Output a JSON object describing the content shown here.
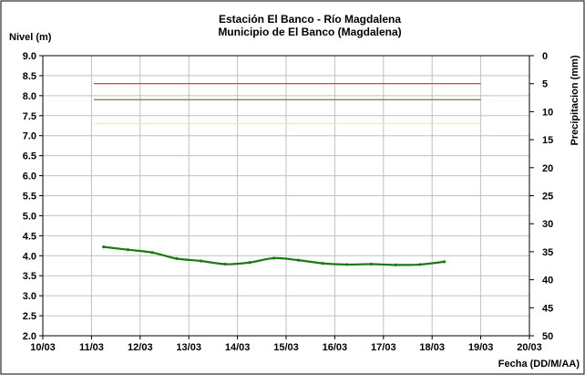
{
  "chart_data": {
    "type": "line",
    "title": "Estación El Banco - Río Magdalena",
    "subtitle": "Municipio de El Banco (Magdalena)",
    "ylabel": "Nivel (m)",
    "y2label": "Precipitacion (mm)",
    "xlabel": "Fecha (DD/M/AA)",
    "ylim": [
      2.0,
      9.0
    ],
    "y_ticks": [
      "2.0",
      "2.5",
      "3.0",
      "3.5",
      "4.0",
      "4.5",
      "5.0",
      "5.5",
      "6.0",
      "6.5",
      "7.0",
      "7.5",
      "8.0",
      "8.5",
      "9.0"
    ],
    "y2lim": [
      0,
      50
    ],
    "y2_reversed": true,
    "y2_ticks": [
      "0",
      "5",
      "10",
      "15",
      "20",
      "25",
      "30",
      "35",
      "40",
      "45",
      "50"
    ],
    "x_ticks": [
      "10/03",
      "11/03",
      "12/03",
      "13/03",
      "14/03",
      "15/03",
      "16/03",
      "17/03",
      "18/03",
      "19/03",
      "20/03"
    ],
    "grid": true,
    "threshold_lines": [
      {
        "y": 8.3,
        "color": "#e8231f"
      },
      {
        "y": 7.9,
        "color": "#8b6b45"
      },
      {
        "y": 7.3,
        "color": "#ffff33"
      }
    ],
    "series": [
      {
        "color": "#1a7a10",
        "x": [
          1.25,
          1.75,
          2.25,
          2.75,
          3.25,
          3.75,
          4.25,
          4.75,
          5.25,
          5.75,
          6.25,
          6.75,
          7.25,
          7.75,
          8.25
        ],
        "y": [
          4.22,
          4.15,
          4.08,
          3.93,
          3.87,
          3.79,
          3.83,
          3.94,
          3.89,
          3.81,
          3.78,
          3.79,
          3.77,
          3.78,
          3.85
        ]
      }
    ]
  }
}
